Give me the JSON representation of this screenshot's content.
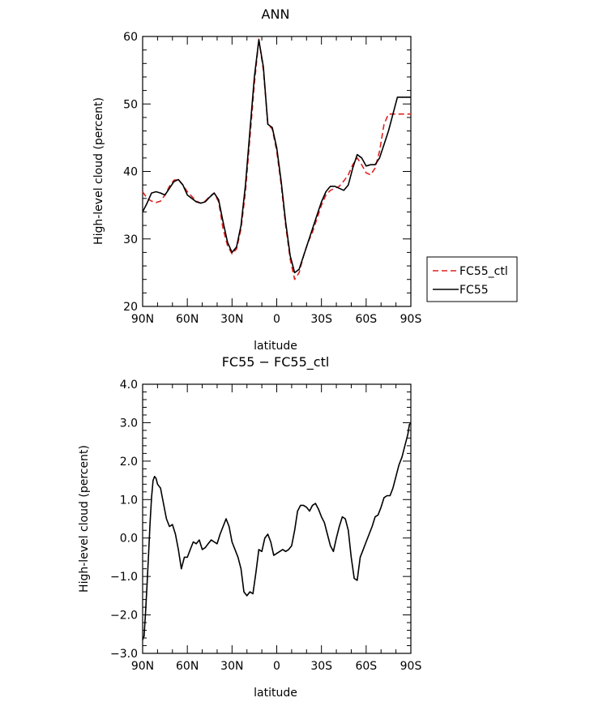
{
  "chart_data": [
    {
      "type": "line",
      "title": "ANN",
      "xlabel": "latitude",
      "ylabel": "High-level cloud (percent)",
      "x_direction": "90N to 90S",
      "xlim": [
        90,
        -90
      ],
      "ylim": [
        20,
        60
      ],
      "xticks": [
        90,
        60,
        30,
        0,
        -30,
        -60,
        -90
      ],
      "xtick_labels": [
        "90N",
        "60N",
        "30N",
        "0",
        "30S",
        "60S",
        "90S"
      ],
      "yticks": [
        20,
        30,
        40,
        50,
        60
      ],
      "ytick_labels": [
        "20",
        "30",
        "40",
        "50",
        "60"
      ],
      "grid": false,
      "legend_position": "outside-right",
      "series": [
        {
          "name": "FC55_ctl",
          "color": "#e02020",
          "dash": "dashed",
          "x": [
            90,
            87,
            84,
            81,
            78,
            75,
            72,
            69,
            66,
            63,
            60,
            57,
            54,
            51,
            48,
            45,
            42,
            39,
            36,
            33,
            30,
            27,
            24,
            21,
            18,
            15,
            12,
            9,
            6,
            3,
            0,
            -3,
            -6,
            -9,
            -12,
            -15,
            -18,
            -21,
            -24,
            -27,
            -30,
            -33,
            -36,
            -39,
            -42,
            -45,
            -48,
            -51,
            -54,
            -57,
            -60,
            -63,
            -66,
            -69,
            -72,
            -75,
            -78,
            -81,
            -84,
            -87,
            -90
          ],
          "y": [
            37.0,
            36.0,
            35.6,
            35.4,
            35.6,
            36.5,
            37.8,
            38.7,
            38.8,
            38.0,
            37.0,
            36.3,
            35.6,
            35.3,
            35.6,
            36.3,
            36.8,
            35.5,
            31.5,
            29.0,
            27.8,
            28.5,
            31.5,
            37.0,
            45.0,
            53.0,
            59.6,
            55.0,
            47.0,
            46.3,
            43.0,
            38.0,
            32.0,
            27.0,
            24.0,
            25.0,
            27.5,
            29.5,
            31.0,
            33.0,
            35.0,
            36.5,
            37.2,
            37.5,
            37.8,
            38.6,
            39.5,
            41.0,
            42.0,
            41.0,
            39.8,
            39.5,
            40.5,
            43.0,
            47.0,
            48.5,
            48.5,
            48.5,
            48.5,
            48.5,
            48.5
          ]
        },
        {
          "name": "FC55",
          "color": "#000000",
          "dash": "solid",
          "x": [
            90,
            87,
            84,
            81,
            78,
            75,
            72,
            69,
            66,
            63,
            60,
            57,
            54,
            51,
            48,
            45,
            42,
            39,
            36,
            33,
            30,
            27,
            24,
            21,
            18,
            15,
            12,
            9,
            6,
            3,
            0,
            -3,
            -6,
            -9,
            -12,
            -15,
            -18,
            -21,
            -24,
            -27,
            -30,
            -33,
            -36,
            -39,
            -42,
            -45,
            -48,
            -51,
            -54,
            -57,
            -60,
            -63,
            -66,
            -69,
            -72,
            -75,
            -78,
            -81,
            -84,
            -87,
            -90
          ],
          "y": [
            34.0,
            35.3,
            36.8,
            37.0,
            36.8,
            36.5,
            37.5,
            38.5,
            38.8,
            38.0,
            36.5,
            36.0,
            35.5,
            35.3,
            35.5,
            36.2,
            36.8,
            35.8,
            32.5,
            29.5,
            28.0,
            28.8,
            32.0,
            38.0,
            46.0,
            54.0,
            59.5,
            55.5,
            47.0,
            46.5,
            43.5,
            38.5,
            32.5,
            27.5,
            25.0,
            25.5,
            27.5,
            29.5,
            31.5,
            33.5,
            35.5,
            37.0,
            37.8,
            37.8,
            37.5,
            37.2,
            38.0,
            40.5,
            42.5,
            42.0,
            40.8,
            41.0,
            41.0,
            42.0,
            44.0,
            46.0,
            48.5,
            51.0,
            51.0,
            51.0,
            51.0
          ]
        }
      ]
    },
    {
      "type": "line",
      "title": "FC55 − FC55_ctl",
      "xlabel": "latitude",
      "ylabel": "High-level cloud (percent)",
      "x_direction": "90N to 90S",
      "xlim": [
        90,
        -90
      ],
      "ylim": [
        -3.0,
        4.0
      ],
      "xticks": [
        90,
        60,
        30,
        0,
        -30,
        -60,
        -90
      ],
      "xtick_labels": [
        "90N",
        "60N",
        "30N",
        "0",
        "30S",
        "60S",
        "90S"
      ],
      "yticks": [
        -3.0,
        -2.0,
        -1.0,
        0.0,
        1.0,
        2.0,
        3.0,
        4.0
      ],
      "ytick_labels": [
        "−3.0",
        "−2.0",
        "−1.0",
        "0.0",
        "1.0",
        "2.0",
        "3.0",
        "4.0"
      ],
      "grid": false,
      "series": [
        {
          "color": "#000000",
          "dash": "solid",
          "x": [
            90,
            89,
            88,
            87,
            86,
            85,
            84,
            83,
            82,
            81,
            80,
            79,
            78,
            76,
            74,
            72,
            70,
            68,
            66,
            64,
            62,
            60,
            58,
            56,
            54,
            52,
            50,
            48,
            46,
            44,
            42,
            40,
            38,
            36,
            34,
            32,
            30,
            28,
            26,
            24,
            22,
            20,
            18,
            16,
            14,
            12,
            10,
            8,
            6,
            4,
            2,
            0,
            -2,
            -4,
            -6,
            -8,
            -10,
            -12,
            -14,
            -16,
            -18,
            -20,
            -22,
            -24,
            -26,
            -28,
            -30,
            -32,
            -34,
            -36,
            -38,
            -40,
            -42,
            -44,
            -46,
            -48,
            -50,
            -52,
            -54,
            -56,
            -58,
            -60,
            -62,
            -64,
            -66,
            -68,
            -70,
            -72,
            -74,
            -76,
            -78,
            -80,
            -82,
            -84,
            -86,
            -88,
            -89,
            -90
          ],
          "y": [
            -2.65,
            -2.55,
            -1.9,
            -1.2,
            -0.4,
            0.4,
            1.05,
            1.5,
            1.6,
            1.55,
            1.4,
            1.35,
            1.3,
            0.9,
            0.5,
            0.3,
            0.35,
            0.1,
            -0.3,
            -0.8,
            -0.5,
            -0.5,
            -0.3,
            -0.1,
            -0.15,
            -0.05,
            -0.3,
            -0.25,
            -0.15,
            -0.05,
            -0.1,
            -0.15,
            0.1,
            0.3,
            0.5,
            0.3,
            -0.1,
            -0.3,
            -0.5,
            -0.8,
            -1.4,
            -1.5,
            -1.4,
            -1.45,
            -0.9,
            -0.3,
            -0.35,
            0.0,
            0.1,
            -0.1,
            -0.45,
            -0.4,
            -0.35,
            -0.3,
            -0.35,
            -0.3,
            -0.2,
            0.2,
            0.7,
            0.85,
            0.85,
            0.8,
            0.7,
            0.85,
            0.9,
            0.75,
            0.55,
            0.4,
            0.1,
            -0.2,
            -0.35,
            0.0,
            0.3,
            0.55,
            0.5,
            0.2,
            -0.5,
            -1.05,
            -1.1,
            -0.5,
            -0.3,
            -0.1,
            0.1,
            0.3,
            0.55,
            0.6,
            0.8,
            1.05,
            1.1,
            1.1,
            1.3,
            1.6,
            1.9,
            2.1,
            2.4,
            2.7,
            2.95,
            3.0
          ]
        }
      ]
    }
  ]
}
